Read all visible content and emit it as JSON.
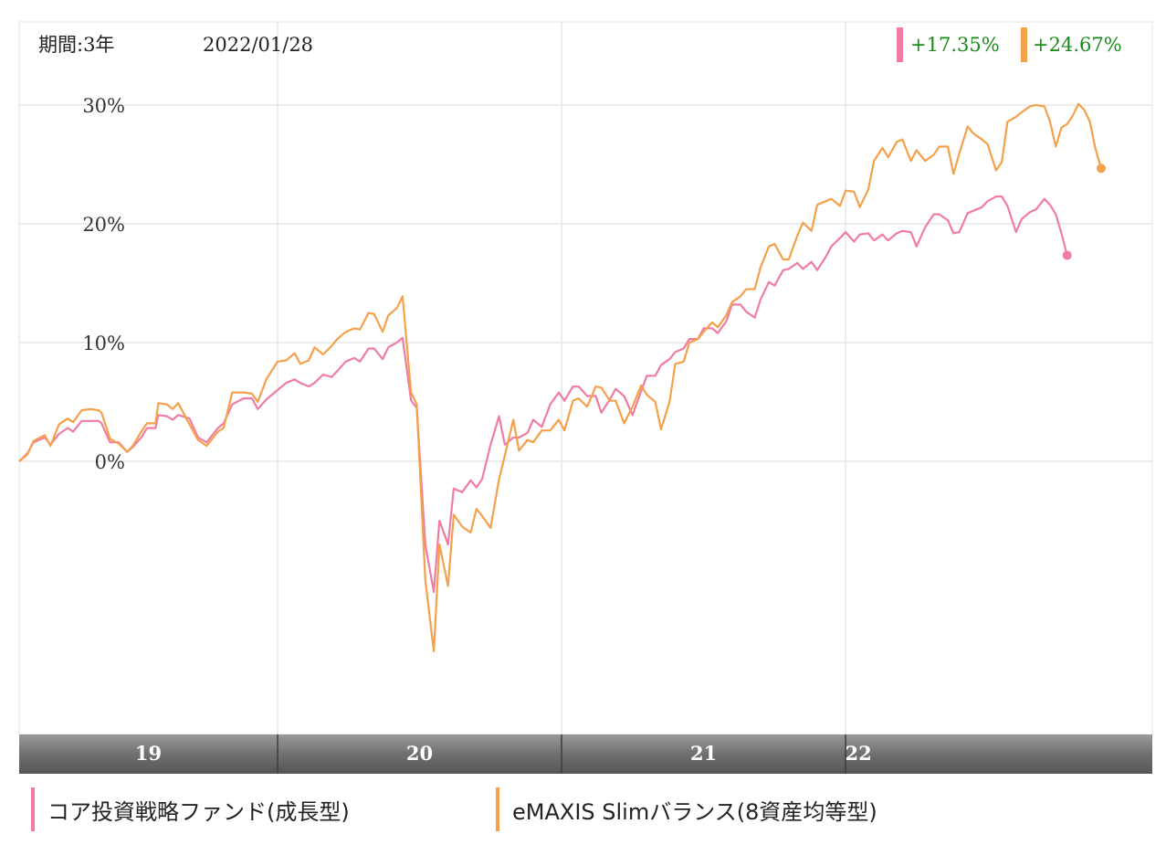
{
  "header": {
    "period": "期間:3年",
    "date": "2022/01/28"
  },
  "returns": [
    {
      "value": "+17.35%",
      "color": "#f07ca6"
    },
    {
      "value": "+24.67%",
      "color": "#f5a04a"
    }
  ],
  "chart_data": {
    "type": "line",
    "title": "",
    "xlabel": "",
    "ylabel": "",
    "x_start": 2018.09,
    "x_end": 2022.08,
    "ylim": [
      -23,
      37
    ],
    "y_ticks": [
      0,
      10,
      20,
      30
    ],
    "y_tick_labels": [
      "0%",
      "10%",
      "20%",
      "30%"
    ],
    "x_ticks": [
      {
        "label": "19",
        "start": 2018.09,
        "end": 2019.0
      },
      {
        "label": "20",
        "start": 2019.0,
        "end": 2020.0
      },
      {
        "label": "21",
        "start": 2020.0,
        "end": 2021.0
      },
      {
        "label": "22",
        "start": 2021.0,
        "end": 2022.08
      }
    ],
    "grid": true,
    "legend_position": "bottom",
    "series": [
      {
        "name": "コア投資戦略ファンド(成長型)",
        "color": "#f07ca6",
        "points": [
          [
            2018.09,
            0
          ],
          [
            2018.12,
            0.7
          ],
          [
            2018.14,
            1.6
          ],
          [
            2018.18,
            2
          ],
          [
            2018.2,
            1.4
          ],
          [
            2018.23,
            2.3
          ],
          [
            2018.26,
            2.8
          ],
          [
            2018.28,
            2.5
          ],
          [
            2018.31,
            3.4
          ],
          [
            2018.34,
            3.4
          ],
          [
            2018.37,
            3.4
          ],
          [
            2018.38,
            3.2
          ],
          [
            2018.41,
            1.6
          ],
          [
            2018.44,
            1.6
          ],
          [
            2018.47,
            0.8
          ],
          [
            2018.49,
            1.2
          ],
          [
            2018.52,
            2
          ],
          [
            2018.54,
            2.8
          ],
          [
            2018.57,
            2.8
          ],
          [
            2018.58,
            3.9
          ],
          [
            2018.61,
            3.8
          ],
          [
            2018.63,
            3.5
          ],
          [
            2018.65,
            3.9
          ],
          [
            2018.69,
            3.6
          ],
          [
            2018.72,
            2
          ],
          [
            2018.75,
            1.6
          ],
          [
            2018.79,
            2.8
          ],
          [
            2018.81,
            3.2
          ],
          [
            2018.84,
            4.8
          ],
          [
            2018.88,
            5.3
          ],
          [
            2018.91,
            5.3
          ],
          [
            2018.93,
            4.4
          ],
          [
            2018.96,
            5.2
          ],
          [
            2019.0,
            6
          ],
          [
            2019.03,
            6.6
          ],
          [
            2019.06,
            6.9
          ],
          [
            2019.08,
            6.6
          ],
          [
            2019.11,
            6.3
          ],
          [
            2019.13,
            6.6
          ],
          [
            2019.16,
            7.3
          ],
          [
            2019.19,
            7.1
          ],
          [
            2019.21,
            7.6
          ],
          [
            2019.24,
            8.4
          ],
          [
            2019.27,
            8.7
          ],
          [
            2019.29,
            8.4
          ],
          [
            2019.32,
            9.5
          ],
          [
            2019.34,
            9.5
          ],
          [
            2019.37,
            8.6
          ],
          [
            2019.39,
            9.6
          ],
          [
            2019.42,
            10
          ],
          [
            2019.44,
            10.4
          ],
          [
            2019.47,
            5.1
          ],
          [
            2019.49,
            4.5
          ],
          [
            2019.52,
            -7
          ],
          [
            2019.55,
            -11
          ],
          [
            2019.57,
            -5
          ],
          [
            2019.6,
            -7
          ],
          [
            2019.62,
            -2.3
          ],
          [
            2019.65,
            -2.6
          ],
          [
            2019.68,
            -1.6
          ],
          [
            2019.7,
            -2.2
          ],
          [
            2019.72,
            -1.5
          ],
          [
            2019.75,
            1.4
          ],
          [
            2019.78,
            3.8
          ],
          [
            2019.8,
            1.4
          ],
          [
            2019.83,
            2
          ],
          [
            2019.85,
            2
          ],
          [
            2019.88,
            2.4
          ],
          [
            2019.9,
            3.5
          ],
          [
            2019.93,
            2.9
          ],
          [
            2019.96,
            4.8
          ],
          [
            2019.99,
            5.8
          ],
          [
            2020.01,
            5.1
          ],
          [
            2020.04,
            6.3
          ],
          [
            2020.06,
            6.3
          ],
          [
            2020.09,
            5.5
          ],
          [
            2020.12,
            5.5
          ],
          [
            2020.14,
            4.1
          ],
          [
            2020.17,
            5.2
          ],
          [
            2020.19,
            6.1
          ],
          [
            2020.22,
            5.5
          ],
          [
            2020.25,
            3.9
          ],
          [
            2020.28,
            5.9
          ],
          [
            2020.3,
            7.2
          ],
          [
            2020.33,
            7.2
          ],
          [
            2020.35,
            8.1
          ],
          [
            2020.38,
            8.6
          ],
          [
            2020.4,
            9.2
          ],
          [
            2020.43,
            9.5
          ],
          [
            2020.45,
            10.3
          ],
          [
            2020.48,
            10.3
          ],
          [
            2020.5,
            11.2
          ],
          [
            2020.53,
            11.2
          ],
          [
            2020.55,
            10.8
          ],
          [
            2020.58,
            11.8
          ],
          [
            2020.6,
            13.2
          ],
          [
            2020.63,
            13.2
          ],
          [
            2020.65,
            12.6
          ],
          [
            2020.68,
            12.1
          ],
          [
            2020.7,
            13.6
          ],
          [
            2020.73,
            15.1
          ],
          [
            2020.75,
            14.8
          ],
          [
            2020.78,
            16.1
          ],
          [
            2020.8,
            16.2
          ],
          [
            2020.83,
            16.7
          ],
          [
            2020.85,
            16.2
          ],
          [
            2020.88,
            16.8
          ],
          [
            2020.9,
            16.1
          ],
          [
            2020.93,
            17.2
          ],
          [
            2020.95,
            18.1
          ],
          [
            2020.98,
            18.8
          ],
          [
            2021.0,
            19.3
          ],
          [
            2021.03,
            18.5
          ],
          [
            2021.05,
            19.1
          ],
          [
            2021.08,
            19.2
          ],
          [
            2021.1,
            18.6
          ],
          [
            2021.13,
            19.1
          ],
          [
            2021.15,
            18.6
          ],
          [
            2021.18,
            19.2
          ],
          [
            2021.2,
            19.4
          ],
          [
            2021.23,
            19.3
          ],
          [
            2021.25,
            18.1
          ],
          [
            2021.28,
            19.7
          ],
          [
            2021.31,
            20.8
          ],
          [
            2021.33,
            20.8
          ],
          [
            2021.36,
            20.3
          ],
          [
            2021.38,
            19.2
          ],
          [
            2021.4,
            19.3
          ],
          [
            2021.43,
            20.9
          ],
          [
            2021.45,
            21.1
          ],
          [
            2021.48,
            21.4
          ],
          [
            2021.5,
            21.9
          ],
          [
            2021.53,
            22.3
          ],
          [
            2021.55,
            22.3
          ],
          [
            2021.57,
            21.5
          ],
          [
            2021.6,
            19.3
          ],
          [
            2021.62,
            20.4
          ],
          [
            2021.65,
            21
          ],
          [
            2021.67,
            21.2
          ],
          [
            2021.7,
            22.1
          ],
          [
            2021.72,
            21.6
          ],
          [
            2021.74,
            20.8
          ],
          [
            2021.76,
            19.2
          ],
          [
            2021.78,
            17.35
          ]
        ]
      },
      {
        "name": "eMAXIS Slimバランス(8資産均等型)",
        "color": "#f5a04a",
        "points": [
          [
            2018.09,
            0
          ],
          [
            2018.12,
            0.6
          ],
          [
            2018.14,
            1.7
          ],
          [
            2018.18,
            2.2
          ],
          [
            2018.2,
            1.3
          ],
          [
            2018.23,
            3.1
          ],
          [
            2018.26,
            3.6
          ],
          [
            2018.28,
            3.3
          ],
          [
            2018.31,
            4.3
          ],
          [
            2018.34,
            4.4
          ],
          [
            2018.37,
            4.3
          ],
          [
            2018.38,
            4.1
          ],
          [
            2018.41,
            1.9
          ],
          [
            2018.44,
            1.5
          ],
          [
            2018.47,
            0.8
          ],
          [
            2018.49,
            1.3
          ],
          [
            2018.52,
            2.5
          ],
          [
            2018.54,
            3.2
          ],
          [
            2018.57,
            3.2
          ],
          [
            2018.58,
            4.9
          ],
          [
            2018.61,
            4.8
          ],
          [
            2018.63,
            4.4
          ],
          [
            2018.65,
            4.9
          ],
          [
            2018.69,
            3.1
          ],
          [
            2018.72,
            1.8
          ],
          [
            2018.75,
            1.3
          ],
          [
            2018.79,
            2.5
          ],
          [
            2018.81,
            2.8
          ],
          [
            2018.84,
            5.8
          ],
          [
            2018.88,
            5.8
          ],
          [
            2018.91,
            5.7
          ],
          [
            2018.93,
            5
          ],
          [
            2018.96,
            6.9
          ],
          [
            2019.0,
            8.4
          ],
          [
            2019.03,
            8.5
          ],
          [
            2019.06,
            9.1
          ],
          [
            2019.08,
            8.2
          ],
          [
            2019.11,
            8.5
          ],
          [
            2019.13,
            9.6
          ],
          [
            2019.16,
            9
          ],
          [
            2019.19,
            9.7
          ],
          [
            2019.21,
            10.3
          ],
          [
            2019.24,
            10.9
          ],
          [
            2019.27,
            11.2
          ],
          [
            2019.29,
            11.1
          ],
          [
            2019.32,
            12.5
          ],
          [
            2019.34,
            12.4
          ],
          [
            2019.37,
            10.9
          ],
          [
            2019.39,
            12.3
          ],
          [
            2019.42,
            12.9
          ],
          [
            2019.44,
            13.9
          ],
          [
            2019.47,
            5.8
          ],
          [
            2019.49,
            4.8
          ],
          [
            2019.52,
            -10
          ],
          [
            2019.55,
            -16
          ],
          [
            2019.57,
            -7
          ],
          [
            2019.6,
            -10.5
          ],
          [
            2019.62,
            -4.5
          ],
          [
            2019.65,
            -5.5
          ],
          [
            2019.68,
            -6
          ],
          [
            2019.7,
            -4
          ],
          [
            2019.72,
            -4.6
          ],
          [
            2019.75,
            -5.6
          ],
          [
            2019.78,
            -1.5
          ],
          [
            2019.8,
            0.5
          ],
          [
            2019.83,
            3.5
          ],
          [
            2019.85,
            0.9
          ],
          [
            2019.88,
            1.8
          ],
          [
            2019.9,
            1.6
          ],
          [
            2019.93,
            2.6
          ],
          [
            2019.96,
            2.6
          ],
          [
            2019.99,
            3.5
          ],
          [
            2020.01,
            2.6
          ],
          [
            2020.04,
            5.1
          ],
          [
            2020.06,
            5.3
          ],
          [
            2020.09,
            4.6
          ],
          [
            2020.12,
            6.3
          ],
          [
            2020.14,
            6.2
          ],
          [
            2020.17,
            5.1
          ],
          [
            2020.19,
            5.1
          ],
          [
            2020.22,
            3.2
          ],
          [
            2020.25,
            4.6
          ],
          [
            2020.28,
            6.4
          ],
          [
            2020.3,
            5.6
          ],
          [
            2020.33,
            5
          ],
          [
            2020.35,
            2.7
          ],
          [
            2020.38,
            5
          ],
          [
            2020.4,
            8.2
          ],
          [
            2020.43,
            8.4
          ],
          [
            2020.45,
            10
          ],
          [
            2020.48,
            10.3
          ],
          [
            2020.5,
            10.9
          ],
          [
            2020.53,
            11.7
          ],
          [
            2020.55,
            11.3
          ],
          [
            2020.58,
            12.3
          ],
          [
            2020.6,
            13.4
          ],
          [
            2020.63,
            13.9
          ],
          [
            2020.65,
            14.5
          ],
          [
            2020.68,
            14.5
          ],
          [
            2020.7,
            16.3
          ],
          [
            2020.73,
            18.1
          ],
          [
            2020.75,
            18.3
          ],
          [
            2020.78,
            17
          ],
          [
            2020.8,
            17
          ],
          [
            2020.83,
            19
          ],
          [
            2020.85,
            20.1
          ],
          [
            2020.88,
            19.4
          ],
          [
            2020.9,
            21.6
          ],
          [
            2020.93,
            21.9
          ],
          [
            2020.95,
            22.1
          ],
          [
            2020.98,
            21.5
          ],
          [
            2021.0,
            22.8
          ],
          [
            2021.03,
            22.7
          ],
          [
            2021.05,
            21.4
          ],
          [
            2021.08,
            22.9
          ],
          [
            2021.1,
            25.3
          ],
          [
            2021.13,
            26.4
          ],
          [
            2021.15,
            25.6
          ],
          [
            2021.18,
            26.9
          ],
          [
            2021.2,
            27.1
          ],
          [
            2021.23,
            25.3
          ],
          [
            2021.25,
            26.2
          ],
          [
            2021.28,
            25.3
          ],
          [
            2021.31,
            25.8
          ],
          [
            2021.33,
            26.5
          ],
          [
            2021.36,
            26.5
          ],
          [
            2021.38,
            24.2
          ],
          [
            2021.4,
            25.9
          ],
          [
            2021.43,
            28.2
          ],
          [
            2021.45,
            27.6
          ],
          [
            2021.48,
            27.1
          ],
          [
            2021.5,
            26.7
          ],
          [
            2021.53,
            24.5
          ],
          [
            2021.55,
            25.2
          ],
          [
            2021.57,
            28.6
          ],
          [
            2021.6,
            29
          ],
          [
            2021.62,
            29.4
          ],
          [
            2021.65,
            29.9
          ],
          [
            2021.67,
            30
          ],
          [
            2021.7,
            29.9
          ],
          [
            2021.72,
            28.6
          ],
          [
            2021.74,
            26.5
          ],
          [
            2021.76,
            28.1
          ],
          [
            2021.78,
            28.4
          ],
          [
            2021.8,
            29.1
          ],
          [
            2021.82,
            30.1
          ],
          [
            2021.84,
            29.6
          ],
          [
            2021.86,
            28.6
          ],
          [
            2021.88,
            26.3
          ],
          [
            2021.9,
            24.67
          ]
        ]
      }
    ]
  },
  "legend": [
    {
      "label": "コア投資戦略ファンド(成長型)",
      "color": "#f07ca6"
    },
    {
      "label": "eMAXIS Slimバランス(8資産均等型)",
      "color": "#f5a04a"
    }
  ]
}
